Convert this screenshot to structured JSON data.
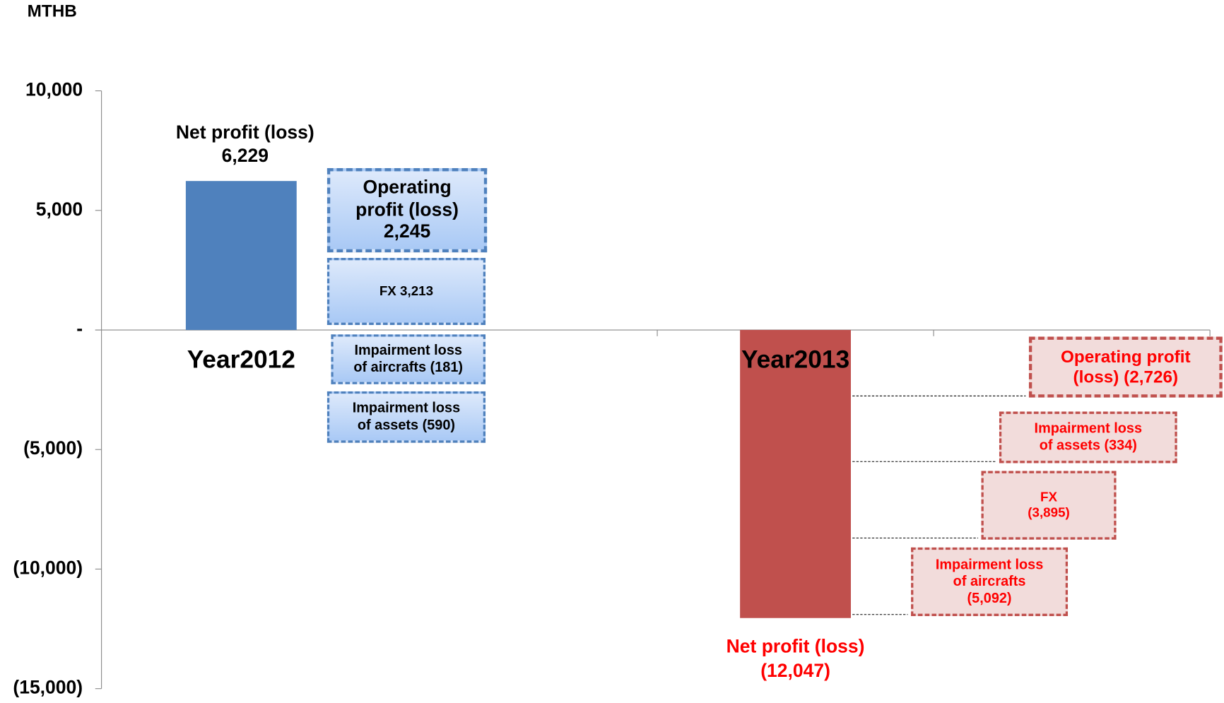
{
  "chart_data": {
    "type": "bar",
    "unit_label": "MTHB",
    "categories": [
      "Year2012",
      "Year2013"
    ],
    "series": [
      {
        "name": "Net profit (loss)",
        "values": [
          6229,
          -12047
        ],
        "value_labels": [
          "6,229",
          "(12,047)"
        ],
        "colors": [
          "#4f81bd",
          "#c0504d"
        ],
        "label_colors": [
          "#000000",
          "#ff0000"
        ]
      }
    ],
    "ylim": [
      -15000,
      10000
    ],
    "yticks": [
      {
        "value": 10000,
        "label": "10,000"
      },
      {
        "value": 5000,
        "label": "5,000"
      },
      {
        "value": 0,
        "label": "-"
      },
      {
        "value": -5000,
        "label": "(5,000)"
      },
      {
        "value": -10000,
        "label": "(10,000)"
      },
      {
        "value": -15000,
        "label": "(15,000)"
      }
    ],
    "annotations": [
      [
        [
          "Operating",
          "profit (loss)",
          "2,245"
        ],
        [
          "FX 3,213"
        ],
        [
          "Impairment loss",
          "of aircrafts (181)"
        ],
        [
          "Impairment loss",
          "of assets (590)"
        ]
      ],
      [
        [
          "Operating profit",
          "(loss) (2,726)"
        ],
        [
          "Impairment loss",
          "of assets (334)"
        ],
        [
          "FX",
          "(3,895)"
        ],
        [
          "Impairment loss",
          "of aircrafts",
          "(5,092)"
        ]
      ]
    ]
  }
}
